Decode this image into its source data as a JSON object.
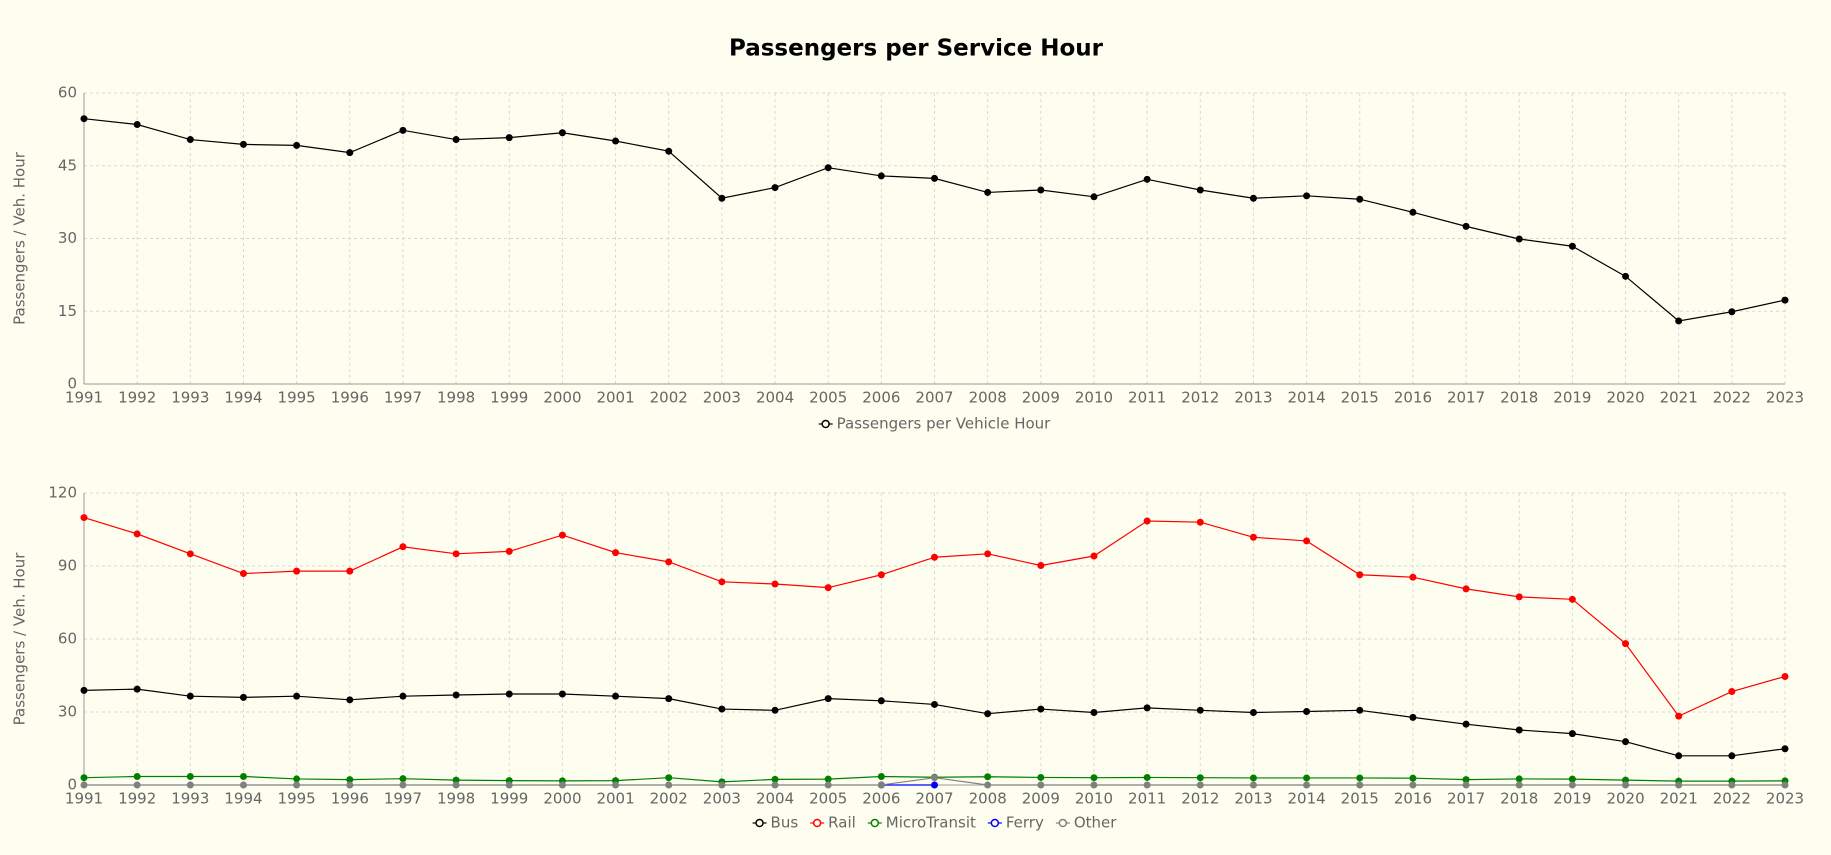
{
  "chart_data": [
    {
      "type": "line",
      "title": "Passengers per Service Hour",
      "ylabel": "Passengers / Veh. Hour",
      "x": [
        1991,
        1992,
        1993,
        1994,
        1995,
        1996,
        1997,
        1998,
        1999,
        2000,
        2001,
        2002,
        2003,
        2004,
        2005,
        2006,
        2007,
        2008,
        2009,
        2010,
        2011,
        2012,
        2013,
        2014,
        2015,
        2016,
        2017,
        2018,
        2019,
        2020,
        2021,
        2022,
        2023
      ],
      "xlim": [
        1991,
        2023
      ],
      "xticks": [
        1991,
        1992,
        1993,
        1994,
        1995,
        1996,
        1997,
        1998,
        1999,
        2000,
        2001,
        2002,
        2003,
        2004,
        2005,
        2006,
        2007,
        2008,
        2009,
        2010,
        2011,
        2012,
        2013,
        2014,
        2015,
        2016,
        2017,
        2018,
        2019,
        2020,
        2021,
        2022,
        2023
      ],
      "ylim": [
        0,
        60
      ],
      "yticks": [
        0,
        15,
        30,
        45,
        60
      ],
      "grid": true,
      "series": [
        {
          "name": "Passengers per Vehicle Hour",
          "color": "#000000",
          "values": [
            54.7,
            53.5,
            50.4,
            49.4,
            49.2,
            47.7,
            52.3,
            50.4,
            50.8,
            51.8,
            50.1,
            48.0,
            38.3,
            40.5,
            44.6,
            42.9,
            42.4,
            39.5,
            40.0,
            38.6,
            42.2,
            40.0,
            38.3,
            38.8,
            38.1,
            35.4,
            32.5,
            29.9,
            28.4,
            22.2,
            13.0,
            14.9,
            17.3
          ]
        }
      ]
    },
    {
      "type": "line",
      "ylabel": "Passengers / Veh. Hour",
      "x": [
        1991,
        1992,
        1993,
        1994,
        1995,
        1996,
        1997,
        1998,
        1999,
        2000,
        2001,
        2002,
        2003,
        2004,
        2005,
        2006,
        2007,
        2008,
        2009,
        2010,
        2011,
        2012,
        2013,
        2014,
        2015,
        2016,
        2017,
        2018,
        2019,
        2020,
        2021,
        2022,
        2023
      ],
      "xlim": [
        1991,
        2023
      ],
      "xticks": [
        1991,
        1992,
        1993,
        1994,
        1995,
        1996,
        1997,
        1998,
        1999,
        2000,
        2001,
        2002,
        2003,
        2004,
        2005,
        2006,
        2007,
        2008,
        2009,
        2010,
        2011,
        2012,
        2013,
        2014,
        2015,
        2016,
        2017,
        2018,
        2019,
        2020,
        2021,
        2022,
        2023
      ],
      "ylim": [
        0,
        120
      ],
      "yticks": [
        0,
        30,
        60,
        90,
        120
      ],
      "grid": true,
      "series": [
        {
          "name": "Bus",
          "color": "#000000",
          "values": [
            38.9,
            39.4,
            36.5,
            36.0,
            36.5,
            35.0,
            36.5,
            37.0,
            37.4,
            37.4,
            36.5,
            35.5,
            31.2,
            30.7,
            35.5,
            34.6,
            33.1,
            29.3,
            31.2,
            29.8,
            31.7,
            30.7,
            29.8,
            30.2,
            30.7,
            27.8,
            25.0,
            22.6,
            21.1,
            17.8,
            12.0,
            12.0,
            14.9
          ]
        },
        {
          "name": "Rail",
          "color": "#ff0000",
          "values": [
            109.9,
            103.2,
            95.0,
            86.9,
            87.9,
            87.9,
            97.9,
            95.0,
            96.0,
            102.7,
            95.5,
            91.7,
            83.5,
            82.6,
            81.1,
            86.4,
            93.6,
            95.0,
            90.2,
            94.1,
            108.5,
            108.0,
            101.8,
            100.3,
            86.4,
            85.4,
            80.6,
            77.3,
            76.3,
            58.1,
            28.3,
            38.4,
            44.6
          ]
        },
        {
          "name": "MicroTransit",
          "color": "#008000",
          "values": [
            3.0,
            3.5,
            3.5,
            3.5,
            2.5,
            2.2,
            2.6,
            2.0,
            1.8,
            1.7,
            1.8,
            3.0,
            1.3,
            2.3,
            2.4,
            3.5,
            3.2,
            3.4,
            3.1,
            3.0,
            3.1,
            3.0,
            2.9,
            2.9,
            2.9,
            2.8,
            2.2,
            2.5,
            2.4,
            2.0,
            1.6,
            1.6,
            1.7
          ]
        },
        {
          "name": "Ferry",
          "color": "#0000ff",
          "values": [
            null,
            null,
            null,
            null,
            null,
            null,
            null,
            null,
            null,
            null,
            null,
            null,
            null,
            null,
            null,
            0,
            0,
            null,
            null,
            null,
            null,
            null,
            null,
            null,
            null,
            null,
            null,
            null,
            null,
            null,
            null,
            null,
            null
          ]
        },
        {
          "name": "Other",
          "color": "#808080",
          "values": [
            0,
            0,
            0,
            0,
            0,
            0,
            0,
            0,
            0,
            0,
            0,
            0,
            0,
            0,
            0,
            0,
            3,
            0,
            0,
            0,
            0,
            0,
            0,
            0,
            0,
            0,
            0,
            0,
            0,
            0,
            0,
            0,
            0
          ]
        }
      ]
    }
  ]
}
